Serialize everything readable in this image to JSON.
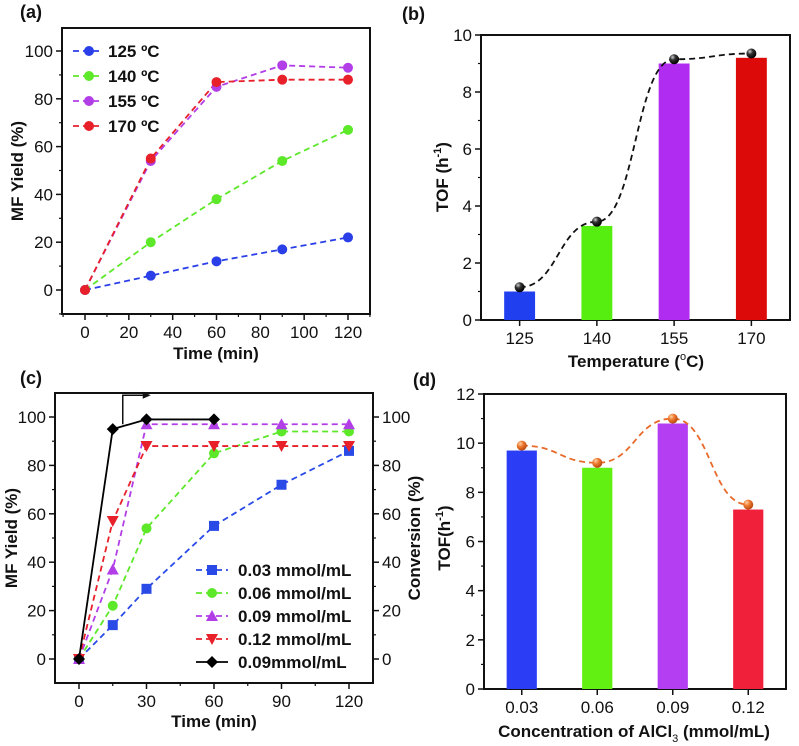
{
  "chart_data": [
    {
      "panel": "(a)",
      "type": "line",
      "title": "",
      "xlabel": "Time (min)",
      "ylabel": "MF Yield (%)",
      "xlim": [
        -10,
        130
      ],
      "ylim": [
        -10,
        110
      ],
      "xticks": [
        0,
        20,
        40,
        60,
        80,
        100,
        120
      ],
      "yticks": [
        0,
        20,
        40,
        60,
        80,
        100
      ],
      "grid": false,
      "legend_position": "top-left",
      "x": [
        0,
        30,
        60,
        90,
        120
      ],
      "series": [
        {
          "name": "125 ºC",
          "color": "#2a3fe8",
          "marker": "circle",
          "values": [
            0,
            6,
            12,
            17,
            22
          ]
        },
        {
          "name": "140 ºC",
          "color": "#5de82a",
          "marker": "circle",
          "values": [
            0,
            20,
            38,
            54,
            67
          ]
        },
        {
          "name": "155 ºC",
          "color": "#b23ee8",
          "marker": "circle",
          "values": [
            0,
            54,
            85,
            94,
            93
          ]
        },
        {
          "name": "170 ºC",
          "color": "#e8202a",
          "marker": "circle",
          "values": [
            0,
            55,
            87,
            88,
            88
          ]
        }
      ]
    },
    {
      "panel": "(b)",
      "type": "bar",
      "title": "",
      "xlabel": "Temperature (ºC)",
      "ylabel": "TOF (h⁻¹)",
      "ylim": [
        0,
        10
      ],
      "yticks": [
        0,
        2,
        4,
        6,
        8,
        10
      ],
      "grid": false,
      "categories": [
        "125",
        "140",
        "155",
        "170"
      ],
      "values": [
        1.0,
        3.3,
        9.0,
        9.2
      ],
      "bar_colors": [
        "#2040f0",
        "#55ee10",
        "#b02cf0",
        "#dd0a0a"
      ],
      "overlay_line": {
        "color": "#111111",
        "marker": "sphere",
        "values": [
          1.15,
          3.45,
          9.15,
          9.35
        ]
      }
    },
    {
      "panel": "(c)",
      "type": "line",
      "title": "",
      "xlabel": "Time (min)",
      "ylabel": "MF Yield (%)",
      "ylabel_right": "Conversion (%)",
      "xlim": [
        -10,
        130
      ],
      "ylim": [
        -10,
        110
      ],
      "xticks": [
        0,
        30,
        60,
        90,
        120
      ],
      "yticks": [
        0,
        20,
        40,
        60,
        80,
        100
      ],
      "grid": false,
      "legend_position": "bottom-right",
      "series": [
        {
          "name": "0.03 mmol/mL",
          "axis": "left",
          "color": "#2a4ae8",
          "marker": "square",
          "dash": true,
          "x": [
            0,
            15,
            30,
            60,
            90,
            120
          ],
          "values": [
            0,
            14,
            29,
            55,
            72,
            86
          ]
        },
        {
          "name": "0.06 mmol/mL",
          "axis": "left",
          "color": "#5de82a",
          "marker": "circle",
          "dash": true,
          "x": [
            0,
            15,
            30,
            60,
            90,
            120
          ],
          "values": [
            0,
            22,
            54,
            85,
            94,
            94
          ]
        },
        {
          "name": "0.09 mmol/mL",
          "axis": "left",
          "color": "#b23ee8",
          "marker": "triangle-up",
          "dash": true,
          "x": [
            0,
            15,
            30,
            60,
            90,
            120
          ],
          "values": [
            0,
            37,
            97,
            97,
            97,
            97
          ]
        },
        {
          "name": "0.12 mmol/mL",
          "axis": "left",
          "color": "#e8202a",
          "marker": "triangle-down",
          "dash": true,
          "x": [
            0,
            15,
            30,
            60,
            90,
            120
          ],
          "values": [
            0,
            57,
            88,
            88,
            88,
            88
          ]
        },
        {
          "name": "0.09mmol/mL",
          "axis": "right",
          "color": "#000000",
          "marker": "diamond",
          "dash": false,
          "x": [
            0,
            15,
            30,
            60
          ],
          "values": [
            0,
            95,
            99,
            99
          ]
        }
      ],
      "annotation": "arrow pointing to right axis"
    },
    {
      "panel": "(d)",
      "type": "bar",
      "title": "",
      "xlabel": "Concentration of AlCl₃ (mmol/mL)",
      "ylabel": "TOF(h⁻¹)",
      "ylim": [
        0,
        12
      ],
      "yticks": [
        0,
        2,
        4,
        6,
        8,
        10,
        12
      ],
      "grid": false,
      "categories": [
        "0.03",
        "0.06",
        "0.09",
        "0.12"
      ],
      "values": [
        9.7,
        9.0,
        10.8,
        7.3
      ],
      "bar_colors": [
        "#2b3ef5",
        "#62f012",
        "#b33ef2",
        "#f0203a"
      ],
      "overlay_line": {
        "color": "#e86a2a",
        "marker": "sphere",
        "values": [
          9.9,
          9.2,
          11.0,
          7.5
        ]
      }
    }
  ],
  "labels": {
    "a": {
      "panel": "(a)",
      "xlabel": "Time (min)",
      "ylabel": "MF Yield (%)"
    },
    "b": {
      "panel": "(b)",
      "xlabel_main": "Temperature (",
      "xlabel_deg": "o",
      "xlabel_end": "C)",
      "ylabel_main": "TOF (h",
      "ylabel_sup": "-1",
      "ylabel_end": ")"
    },
    "c": {
      "panel": "(c)",
      "xlabel": "Time (min)",
      "ylabel": "MF Yield (%)",
      "ylabel_right": "Conversion (%)"
    },
    "d": {
      "panel": "(d)",
      "xlabel_main": "Concentration of AlCl",
      "xlabel_sub": "3",
      "xlabel_end": " (mmol/mL)",
      "ylabel_main": "TOF(h",
      "ylabel_sup": "-1",
      "ylabel_end": ")"
    }
  }
}
